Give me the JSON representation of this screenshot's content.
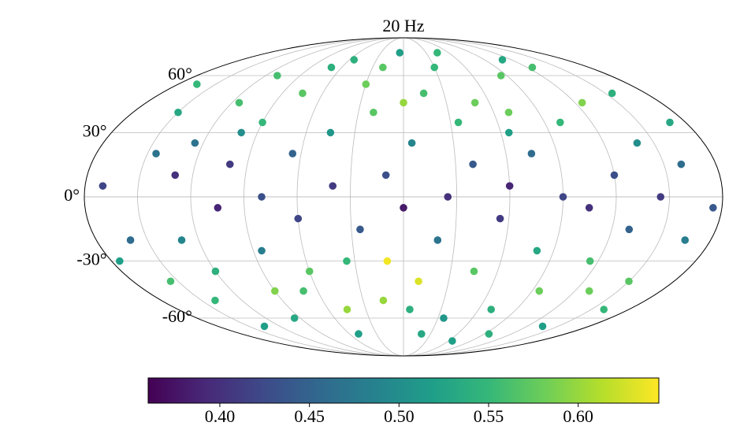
{
  "chart_data": {
    "type": "scatter",
    "projection": "mollweide",
    "title": "20 Hz",
    "xlim": [
      -180,
      180
    ],
    "ylim": [
      -90,
      90
    ],
    "xticks": [
      -150,
      -120,
      -90,
      -60,
      -30,
      0,
      30,
      60,
      90,
      120,
      150
    ],
    "yticks": [
      {
        "value": -60,
        "label": "-60°"
      },
      {
        "value": -30,
        "label": "-30°"
      },
      {
        "value": 0,
        "label": "0°"
      },
      {
        "value": 30,
        "label": "30°"
      },
      {
        "value": 60,
        "label": "60°"
      }
    ],
    "grid": true,
    "colormap": "viridis",
    "clim": [
      0.36,
      0.645
    ],
    "cticks": [
      {
        "value": 0.4,
        "label": "0.40"
      },
      {
        "value": 0.45,
        "label": "0.45"
      },
      {
        "value": 0.5,
        "label": "0.50"
      },
      {
        "value": 0.55,
        "label": "0.55"
      },
      {
        "value": 0.6,
        "label": "0.60"
      }
    ],
    "x": [
      -170,
      -160,
      -150,
      -140,
      -130,
      -125,
      -120,
      -110,
      -105,
      -100,
      -95,
      -90,
      -85,
      -80,
      -75,
      -70,
      -65,
      -60,
      -55,
      -50,
      -45,
      -40,
      -35,
      -30,
      -25,
      -20,
      -15,
      -10,
      -5,
      0,
      5,
      10,
      15,
      20,
      25,
      30,
      35,
      40,
      45,
      50,
      55,
      60,
      65,
      70,
      75,
      80,
      85,
      90,
      95,
      100,
      105,
      110,
      115,
      120,
      125,
      130,
      135,
      140,
      145,
      150,
      155,
      160,
      165,
      170,
      175,
      -165,
      -155,
      -145,
      -135,
      -115,
      -90,
      -70,
      -45,
      -20,
      0,
      20,
      45,
      65,
      95,
      125,
      -130,
      -60,
      35,
      130,
      -10,
      70,
      -100,
      160,
      -175,
      5
    ],
    "y": [
      5,
      -20,
      40,
      -50,
      10,
      25,
      -35,
      60,
      -5,
      15,
      -60,
      35,
      -25,
      0,
      50,
      -45,
      20,
      -10,
      70,
      -70,
      30,
      5,
      -30,
      55,
      -15,
      40,
      -50,
      10,
      75,
      -5,
      25,
      -40,
      50,
      -20,
      0,
      65,
      -60,
      15,
      -35,
      45,
      -10,
      5,
      30,
      -55,
      20,
      -25,
      60,
      0,
      -45,
      35,
      -5,
      70,
      -30,
      10,
      45,
      -15,
      -65,
      25,
      0,
      -40,
      50,
      15,
      -20,
      35,
      -5,
      55,
      -40,
      20,
      -65,
      45,
      -45,
      65,
      -55,
      65,
      45,
      -70,
      75,
      -75,
      -70,
      65,
      -20,
      -35,
      35,
      -45,
      -30,
      40,
      30,
      -55,
      -30,
      -55
    ],
    "values": [
      0.42,
      0.46,
      0.53,
      0.55,
      0.4,
      0.47,
      0.54,
      0.56,
      0.39,
      0.41,
      0.53,
      0.55,
      0.48,
      0.43,
      0.57,
      0.56,
      0.45,
      0.42,
      0.54,
      0.52,
      0.51,
      0.41,
      0.55,
      0.58,
      0.44,
      0.57,
      0.6,
      0.43,
      0.52,
      0.38,
      0.49,
      0.63,
      0.56,
      0.47,
      0.4,
      0.55,
      0.51,
      0.44,
      0.57,
      0.58,
      0.41,
      0.39,
      0.52,
      0.54,
      0.46,
      0.53,
      0.57,
      0.42,
      0.58,
      0.55,
      0.4,
      0.53,
      0.56,
      0.43,
      0.59,
      0.45,
      0.52,
      0.5,
      0.41,
      0.57,
      0.54,
      0.46,
      0.48,
      0.53,
      0.44,
      0.55,
      0.56,
      0.47,
      0.52,
      0.56,
      0.59,
      0.54,
      0.6,
      0.57,
      0.6,
      0.53,
      0.55,
      0.52,
      0.54,
      0.56,
      0.49,
      0.57,
      0.55,
      0.58,
      0.64,
      0.58,
      0.5,
      0.55,
      0.52,
      0.54
    ]
  }
}
